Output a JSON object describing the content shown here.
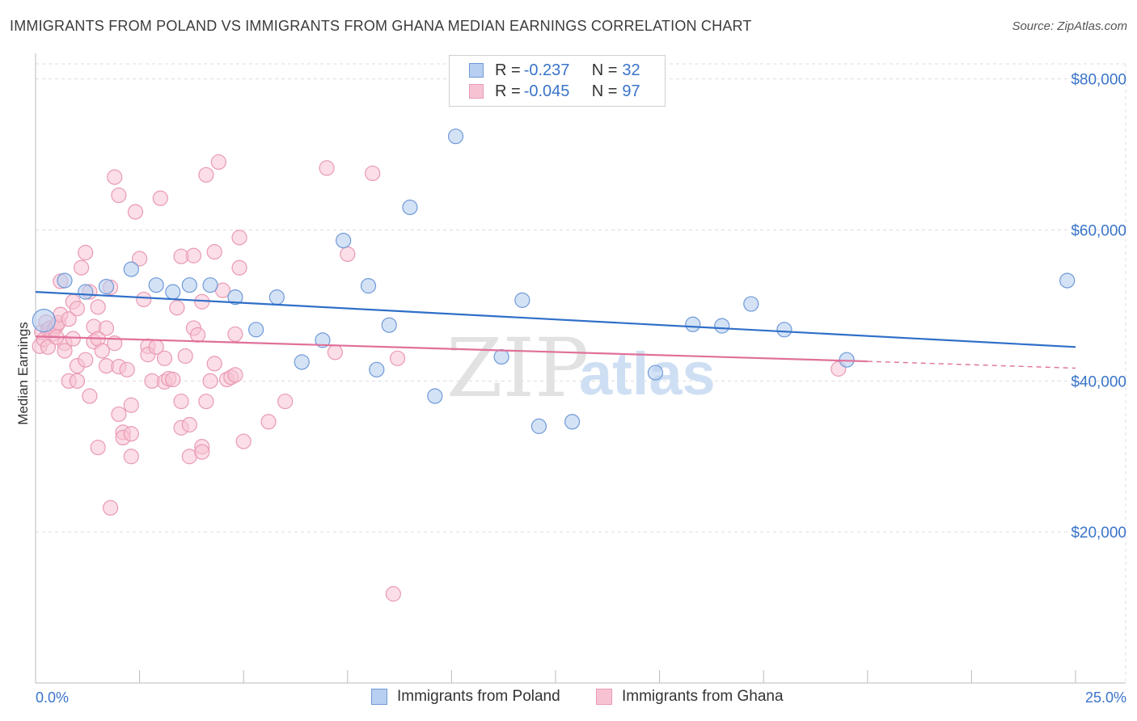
{
  "header": {
    "title": "IMMIGRANTS FROM POLAND VS IMMIGRANTS FROM GHANA MEDIAN EARNINGS CORRELATION CHART",
    "source": "Source: ZipAtlas.com"
  },
  "watermark": {
    "part1": "ZIP",
    "part2": "atlas"
  },
  "legend": {
    "poland": {
      "r_label": "R = ",
      "r_value": "-0.237",
      "n_label": "N = ",
      "n_value": "32"
    },
    "ghana": {
      "r_label": "R = ",
      "r_value": "-0.045",
      "n_label": "N = ",
      "n_value": "97"
    }
  },
  "colors": {
    "poland_fill": "#b7cff0",
    "poland_stroke": "#6f9ad8",
    "poland_line": "#2f6fc9",
    "ghana_fill": "#f7c3d3",
    "ghana_stroke": "#e99ab3",
    "ghana_line": "#e0709a",
    "grid": "#dddddd",
    "axis_text": "#3a74c9"
  },
  "chart_data": {
    "type": "scatter",
    "title": "IMMIGRANTS FROM POLAND VS IMMIGRANTS FROM GHANA MEDIAN EARNINGS CORRELATION CHART",
    "xlabel": "",
    "ylabel": "Median Earnings",
    "xlim": [
      0,
      25
    ],
    "ylim": [
      0,
      82000
    ],
    "x_tick_labels": [
      "0.0%",
      "25.0%"
    ],
    "y_ticks": [
      20000,
      40000,
      60000,
      80000
    ],
    "y_tick_labels": [
      "$20,000",
      "$40,000",
      "$60,000",
      "$80,000"
    ],
    "grid": true,
    "legend_position": "top-center",
    "series": [
      {
        "name": "Immigrants from Poland",
        "r": -0.237,
        "n": 32,
        "trend": {
          "x0": 0,
          "y0": 51800,
          "x1": 25,
          "y1": 44500
        },
        "points": [
          [
            0.2,
            48000
          ],
          [
            0.7,
            53300
          ],
          [
            1.2,
            51800
          ],
          [
            1.7,
            52500
          ],
          [
            2.3,
            54800
          ],
          [
            2.9,
            52700
          ],
          [
            3.3,
            51800
          ],
          [
            3.7,
            52700
          ],
          [
            4.2,
            52700
          ],
          [
            4.8,
            51100
          ],
          [
            5.3,
            46800
          ],
          [
            5.8,
            51100
          ],
          [
            6.4,
            42500
          ],
          [
            6.9,
            45400
          ],
          [
            7.4,
            58600
          ],
          [
            8.0,
            52600
          ],
          [
            8.2,
            41500
          ],
          [
            8.5,
            47400
          ],
          [
            9.0,
            63000
          ],
          [
            9.6,
            38000
          ],
          [
            10.1,
            72400
          ],
          [
            11.2,
            43200
          ],
          [
            11.7,
            50700
          ],
          [
            12.1,
            34000
          ],
          [
            12.9,
            34600
          ],
          [
            14.9,
            41100
          ],
          [
            15.8,
            47500
          ],
          [
            16.5,
            47300
          ],
          [
            17.2,
            50200
          ],
          [
            18.0,
            46800
          ],
          [
            19.5,
            42800
          ],
          [
            24.8,
            53300
          ]
        ]
      },
      {
        "name": "Immigrants from Ghana",
        "r": -0.045,
        "n": 97,
        "trend": {
          "x0": 0,
          "y0": 45900,
          "x1": 20,
          "y1": 42600,
          "dash_to_x": 25,
          "dash_to_y": 41700
        },
        "points": [
          [
            0.1,
            44600
          ],
          [
            0.15,
            46500
          ],
          [
            0.2,
            45500
          ],
          [
            0.25,
            47800
          ],
          [
            0.3,
            46800
          ],
          [
            0.35,
            47000
          ],
          [
            0.4,
            46200
          ],
          [
            0.45,
            46900
          ],
          [
            0.5,
            47300
          ],
          [
            0.55,
            47700
          ],
          [
            0.6,
            53200
          ],
          [
            0.6,
            48800
          ],
          [
            0.7,
            45000
          ],
          [
            0.7,
            44000
          ],
          [
            0.8,
            48200
          ],
          [
            0.8,
            40000
          ],
          [
            0.9,
            50500
          ],
          [
            1.0,
            49600
          ],
          [
            1.0,
            42000
          ],
          [
            1.0,
            40000
          ],
          [
            1.1,
            55000
          ],
          [
            1.2,
            57000
          ],
          [
            1.3,
            51800
          ],
          [
            1.3,
            38000
          ],
          [
            1.4,
            47200
          ],
          [
            1.4,
            45200
          ],
          [
            1.5,
            49800
          ],
          [
            1.5,
            45600
          ],
          [
            1.5,
            31200
          ],
          [
            1.6,
            44000
          ],
          [
            1.7,
            47000
          ],
          [
            1.7,
            42000
          ],
          [
            1.8,
            52400
          ],
          [
            1.8,
            23200
          ],
          [
            1.9,
            67000
          ],
          [
            1.9,
            45000
          ],
          [
            2.0,
            64600
          ],
          [
            2.0,
            41900
          ],
          [
            2.0,
            35600
          ],
          [
            2.1,
            33200
          ],
          [
            2.1,
            32500
          ],
          [
            2.2,
            41500
          ],
          [
            2.3,
            33000
          ],
          [
            2.3,
            30000
          ],
          [
            2.3,
            36800
          ],
          [
            2.4,
            62400
          ],
          [
            2.5,
            56200
          ],
          [
            2.6,
            50800
          ],
          [
            2.7,
            44600
          ],
          [
            2.7,
            43500
          ],
          [
            2.8,
            40000
          ],
          [
            2.9,
            44500
          ],
          [
            3.0,
            64200
          ],
          [
            3.1,
            43000
          ],
          [
            3.1,
            39900
          ],
          [
            3.2,
            40300
          ],
          [
            3.3,
            40200
          ],
          [
            3.4,
            49700
          ],
          [
            3.5,
            56500
          ],
          [
            3.5,
            33800
          ],
          [
            3.5,
            37300
          ],
          [
            3.6,
            43300
          ],
          [
            3.7,
            34200
          ],
          [
            3.7,
            30000
          ],
          [
            3.8,
            56600
          ],
          [
            3.8,
            47000
          ],
          [
            3.9,
            46100
          ],
          [
            4.0,
            50500
          ],
          [
            4.0,
            31300
          ],
          [
            4.0,
            30600
          ],
          [
            4.1,
            67300
          ],
          [
            4.1,
            37300
          ],
          [
            4.2,
            40000
          ],
          [
            4.3,
            57100
          ],
          [
            4.3,
            42300
          ],
          [
            4.4,
            69000
          ],
          [
            4.5,
            52000
          ],
          [
            4.6,
            40200
          ],
          [
            4.7,
            40500
          ],
          [
            4.8,
            46200
          ],
          [
            4.8,
            40800
          ],
          [
            4.9,
            59000
          ],
          [
            4.9,
            55000
          ],
          [
            5.0,
            32000
          ],
          [
            5.6,
            34600
          ],
          [
            6.0,
            37300
          ],
          [
            7.0,
            68200
          ],
          [
            7.2,
            43800
          ],
          [
            7.5,
            56800
          ],
          [
            8.1,
            67500
          ],
          [
            8.6,
            11800
          ],
          [
            8.7,
            43000
          ],
          [
            19.3,
            41600
          ],
          [
            0.3,
            44500
          ],
          [
            0.5,
            45800
          ],
          [
            0.9,
            45600
          ],
          [
            1.2,
            42800
          ]
        ]
      }
    ]
  },
  "bottom_legend": {
    "poland_label": "Immigrants from Poland",
    "ghana_label": "Immigrants from Ghana"
  }
}
